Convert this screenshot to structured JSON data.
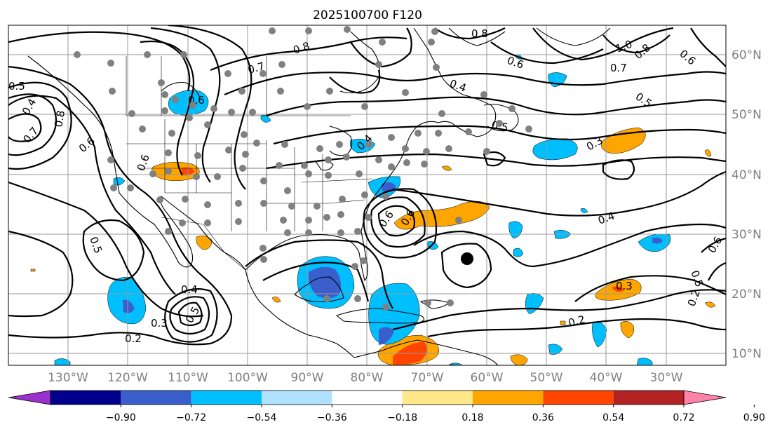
{
  "title": "2025100700 F120",
  "lat_labels": [
    "60°N",
    "50°N",
    "40°N",
    "30°N",
    "20°N",
    "10°N"
  ],
  "lon_labels": [
    "130°W",
    "120°W",
    "110°W",
    "100°W",
    "90°W",
    "80°W",
    "70°W",
    "60°W",
    "50°W",
    "40°W",
    "30°W"
  ],
  "colorbar": {
    "ticks": [
      "−0.90",
      "−0.72",
      "−0.54",
      "−0.36",
      "−0.18",
      "0.18",
      "0.36",
      "0.54",
      "0.72",
      "0.90"
    ],
    "colors": [
      "#9932cc",
      "#00008b",
      "#3a5fcd",
      "#00bfff",
      "#b0e2ff",
      "#ffffff",
      "#ffe88a",
      "#ffa500",
      "#ff4500",
      "#b22222",
      "#ff82ab"
    ]
  },
  "contour_labels": {
    "l1": "0.8",
    "l2": "0.7",
    "l3": "0.6",
    "l4": "0.5",
    "l5": "0.4",
    "l6": "0.3",
    "l7": "0.2",
    "l8": "0.6",
    "l9": "0.5",
    "l10": "0.4",
    "l11": "0.3",
    "l12": "0.2",
    "l13": "0.7",
    "l14": "0.6",
    "l15": "0.4",
    "l16": "0.5",
    "l17": "0.8",
    "l18": "0.3",
    "l19": "0.5",
    "l20": "0.6",
    "l21": "1.0",
    "l22": "0.8",
    "l23": "0.6",
    "l24": "0.4",
    "l25": "0.6",
    "l26": "0.5",
    "l27": "0.2",
    "l28": "0.5",
    "l29": "0.6",
    "l30": "0.7",
    "l31": "0.8",
    "l32": "0.4",
    "l33": "0.6"
  },
  "stations_color": "#808080",
  "marker_color": "#000000"
}
